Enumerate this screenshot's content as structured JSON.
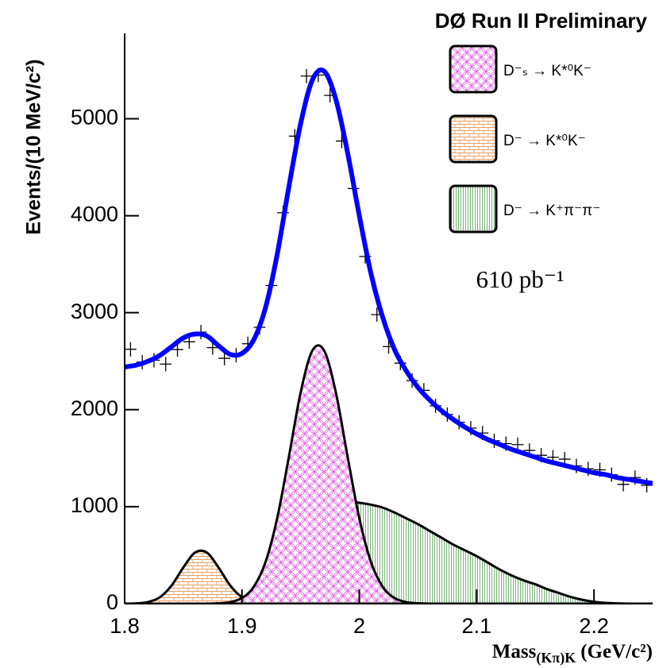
{
  "chart_data": {
    "type": "fit",
    "title": "DØ Run II Preliminary",
    "annotation": "610 pb⁻¹",
    "ylabel": "Events/(10 MeV/c²)",
    "xlabel": {
      "text": "Mass",
      "subscript": "(Kπ)K",
      "unit": "(GeV/c²)"
    },
    "xlim": [
      1.8,
      2.25
    ],
    "ylim": [
      0,
      5880
    ],
    "xticks": [
      1.8,
      1.9,
      2,
      2.1,
      2.2
    ],
    "yticks": [
      0,
      1000,
      2000,
      3000,
      4000,
      5000
    ],
    "x": [
      1.8,
      1.81,
      1.82,
      1.83,
      1.84,
      1.85,
      1.86,
      1.87,
      1.88,
      1.89,
      1.9,
      1.91,
      1.92,
      1.93,
      1.94,
      1.95,
      1.96,
      1.97,
      1.98,
      1.99,
      2.0,
      2.01,
      2.02,
      2.03,
      2.04,
      2.05,
      2.06,
      2.07,
      2.08,
      2.09,
      2.1,
      2.11,
      2.12,
      2.13,
      2.14,
      2.15,
      2.16,
      2.17,
      2.18,
      2.19,
      2.2,
      2.21,
      2.22,
      2.23,
      2.24,
      2.25
    ],
    "fit": {
      "color": "#0000ff",
      "values": [
        2440,
        2460,
        2500,
        2560,
        2650,
        2740,
        2780,
        2760,
        2660,
        2570,
        2580,
        2720,
        3050,
        3600,
        4300,
        4950,
        5400,
        5490,
        5200,
        4650,
        4000,
        3400,
        2950,
        2620,
        2400,
        2230,
        2100,
        1990,
        1900,
        1820,
        1750,
        1690,
        1640,
        1590,
        1550,
        1510,
        1470,
        1440,
        1410,
        1380,
        1350,
        1330,
        1300,
        1280,
        1260,
        1240
      ]
    },
    "data_points": {
      "color": "#000000",
      "x": [
        1.805,
        1.815,
        1.825,
        1.835,
        1.845,
        1.855,
        1.865,
        1.875,
        1.885,
        1.895,
        1.905,
        1.915,
        1.925,
        1.935,
        1.945,
        1.955,
        1.965,
        1.975,
        1.985,
        1.995,
        2.005,
        2.015,
        2.025,
        2.035,
        2.045,
        2.055,
        2.065,
        2.075,
        2.085,
        2.095,
        2.105,
        2.115,
        2.125,
        2.135,
        2.145,
        2.155,
        2.165,
        2.175,
        2.185,
        2.195,
        2.205,
        2.215,
        2.225,
        2.235,
        2.245
      ],
      "values": [
        2623,
        2490,
        2510,
        2470,
        2620,
        2700,
        2800,
        2640,
        2530,
        2560,
        2680,
        2850,
        3280,
        4030,
        4820,
        5440,
        5450,
        5240,
        4770,
        4280,
        3580,
        2980,
        2650,
        2480,
        2300,
        2200,
        2040,
        1950,
        1870,
        1810,
        1760,
        1680,
        1650,
        1640,
        1580,
        1530,
        1510,
        1490,
        1420,
        1390,
        1380,
        1330,
        1230,
        1300,
        1220
      ]
    },
    "series": [
      {
        "name": "D⁻ₛ → K*⁰K⁻",
        "color": "#e060e0",
        "pattern": "circles",
        "values": [
          0,
          0,
          0,
          0,
          0,
          0,
          0,
          0,
          4,
          16,
          58,
          173,
          427,
          881,
          1516,
          2178,
          2610,
          2610,
          2178,
          1516,
          881,
          427,
          173,
          58,
          16,
          4,
          0,
          0,
          0,
          0,
          0,
          0,
          0,
          0,
          0,
          0,
          0,
          0,
          0,
          0,
          0,
          0,
          0,
          0,
          0,
          0
        ]
      },
      {
        "name": "D⁻ → K*⁰K⁻",
        "color": "#e8a060",
        "pattern": "bricks",
        "values": [
          0,
          3,
          17,
          66,
          187,
          373,
          527,
          527,
          373,
          187,
          66,
          17,
          3,
          0,
          0,
          0,
          0,
          0,
          0,
          0,
          0,
          0,
          0,
          0,
          0,
          0,
          0,
          0,
          0,
          0,
          0,
          0,
          0,
          0,
          0,
          0,
          0,
          0,
          0,
          0,
          0,
          0,
          0,
          0,
          0,
          0
        ]
      },
      {
        "name": "D⁻ → K⁺π⁻π⁻",
        "color": "#6aaa6a",
        "pattern": "lines",
        "values": [
          0,
          0,
          0,
          0,
          0,
          0,
          0,
          0,
          0,
          0,
          5,
          20,
          60,
          150,
          300,
          480,
          680,
          870,
          1000,
          1050,
          1040,
          1020,
          990,
          940,
          880,
          820,
          750,
          680,
          610,
          550,
          490,
          420,
          350,
          290,
          240,
          200,
          150,
          110,
          70,
          40,
          20,
          8,
          3,
          0,
          0,
          0
        ]
      }
    ]
  }
}
